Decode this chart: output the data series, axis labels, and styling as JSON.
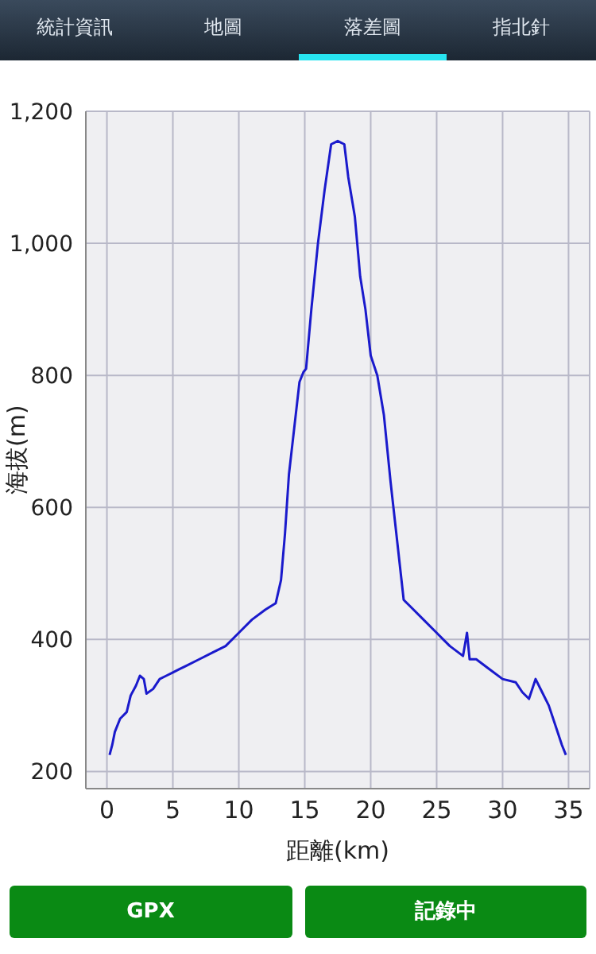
{
  "chart_data": {
    "type": "line",
    "xlabel": "距離(km)",
    "ylabel": "海拔(m)",
    "annotations": [
      "統計資訊",
      "地圖",
      "落差圖",
      "指北針",
      "GPX",
      "記錄中"
    ],
    "x": [
      0.2,
      0.4,
      0.6,
      1.0,
      1.5,
      1.8,
      2.2,
      2.5,
      2.8,
      3.0,
      3.5,
      4.0,
      4.5,
      5,
      5.5,
      6,
      7,
      8,
      9,
      10,
      11,
      12,
      12.8,
      13.2,
      13.5,
      13.8,
      14.2,
      14.6,
      14.9,
      15.1,
      15.5,
      16,
      16.5,
      17.0,
      17.5,
      18.0,
      18.3,
      18.8,
      19.2,
      19.6,
      20,
      20.5,
      21,
      21.5,
      22,
      22.5,
      23,
      24,
      25,
      25.5,
      26,
      27,
      27.3,
      27.5,
      28,
      29,
      30,
      31,
      31.5,
      32,
      32.5,
      33,
      33.5,
      34,
      34.5,
      34.8
    ],
    "series": [
      {
        "color": "#1a1acc",
        "values": [
          225,
          240,
          260,
          280,
          290,
          315,
          330,
          345,
          340,
          318,
          325,
          340,
          345,
          350,
          355,
          360,
          370,
          380,
          390,
          410,
          430,
          445,
          455,
          490,
          560,
          650,
          720,
          790,
          805,
          810,
          900,
          1000,
          1080,
          1150,
          1155,
          1150,
          1100,
          1040,
          950,
          900,
          830,
          800,
          740,
          640,
          550,
          460,
          450,
          430,
          410,
          400,
          390,
          375,
          410,
          370,
          370,
          355,
          340,
          335,
          320,
          310,
          340,
          320,
          300,
          270,
          240,
          225
        ]
      }
    ],
    "xlim": [
      -1.6,
      36.6
    ],
    "xticks": [
      0,
      5,
      10,
      15,
      20,
      25,
      30,
      35
    ],
    "ylim": [
      174,
      1200
    ],
    "yticks": [
      {
        "value": 200,
        "label": "200"
      },
      {
        "value": 400,
        "label": "400"
      },
      {
        "value": 600,
        "label": "600"
      },
      {
        "value": 800,
        "label": "800"
      },
      {
        "value": 1000,
        "label": "1,000"
      },
      {
        "value": 1200,
        "label": "1,200"
      }
    ],
    "grid": true,
    "marker": "none",
    "line_style": "solid",
    "legend": false
  }
}
